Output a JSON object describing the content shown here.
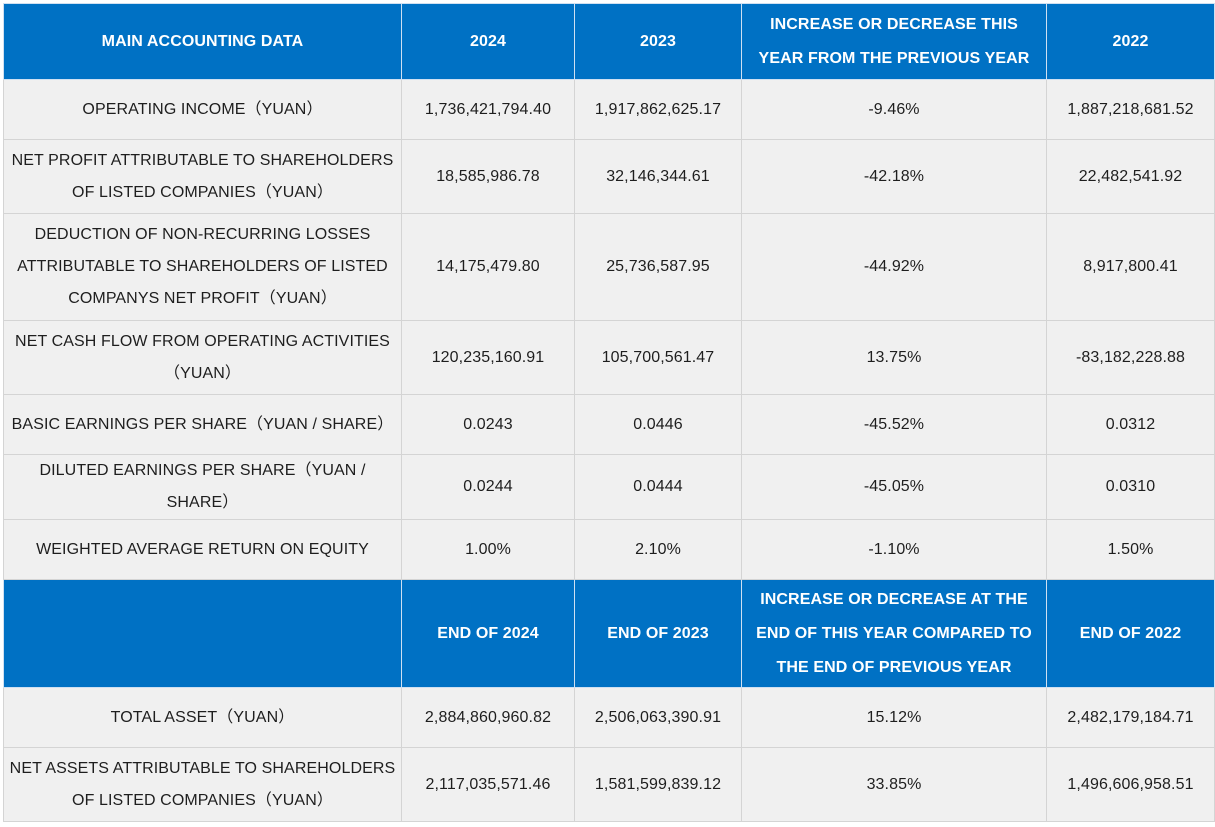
{
  "header_row_1": {
    "col1": "MAIN ACCOUNTING DATA",
    "col2": "2024",
    "col3": "2023",
    "col4": "INCREASE OR DECREASE THIS YEAR FROM THE PREVIOUS YEAR",
    "col5": "2022"
  },
  "rows_1": [
    {
      "label": "OPERATING INCOME（YUAN）",
      "v2024": "1,736,421,794.40",
      "v2023": "1,917,862,625.17",
      "change": "-9.46%",
      "v2022": "1,887,218,681.52"
    },
    {
      "label": "NET PROFIT ATTRIBUTABLE TO SHAREHOLDERS OF LISTED COMPANIES（YUAN）",
      "v2024": "18,585,986.78",
      "v2023": "32,146,344.61",
      "change": "-42.18%",
      "v2022": "22,482,541.92"
    },
    {
      "label": "DEDUCTION OF NON-RECURRING LOSSES ATTRIBUTABLE TO SHAREHOLDERS OF LISTED COMPANYS NET PROFIT（YUAN）",
      "v2024": "14,175,479.80",
      "v2023": "25,736,587.95",
      "change": "-44.92%",
      "v2022": "8,917,800.41"
    },
    {
      "label": "NET CASH FLOW FROM OPERATING ACTIVITIES（YUAN）",
      "v2024": "120,235,160.91",
      "v2023": "105,700,561.47",
      "change": "13.75%",
      "v2022": "-83,182,228.88"
    },
    {
      "label": "BASIC EARNINGS PER SHARE（YUAN / SHARE）",
      "v2024": "0.0243",
      "v2023": "0.0446",
      "change": "-45.52%",
      "v2022": "0.0312"
    },
    {
      "label": "DILUTED EARNINGS PER SHARE（YUAN / SHARE）",
      "v2024": "0.0244",
      "v2023": "0.0444",
      "change": "-45.05%",
      "v2022": "0.0310"
    },
    {
      "label": "WEIGHTED AVERAGE RETURN ON EQUITY",
      "v2024": "1.00%",
      "v2023": "2.10%",
      "change": "-1.10%",
      "v2022": "1.50%"
    }
  ],
  "header_row_2": {
    "col1": "",
    "col2": "END OF 2024",
    "col3": "END OF 2023",
    "col4": "INCREASE OR DECREASE AT THE END OF THIS YEAR COMPARED TO THE END OF PREVIOUS YEAR",
    "col5": "END OF 2022"
  },
  "rows_2": [
    {
      "label": "TOTAL ASSET（YUAN）",
      "v2024": "2,884,860,960.82",
      "v2023": "2,506,063,390.91",
      "change": "15.12%",
      "v2022": "2,482,179,184.71"
    },
    {
      "label": "NET ASSETS ATTRIBUTABLE TO SHAREHOLDERS OF LISTED COMPANIES（YUAN）",
      "v2024": "2,117,035,571.46",
      "v2023": "1,581,599,839.12",
      "change": "33.85%",
      "v2022": "1,496,606,958.51"
    }
  ],
  "colors": {
    "header_bg": "#0071c4",
    "header_text": "#ffffff",
    "cell_bg": "#f0f0f0",
    "border": "#d4d4d4"
  }
}
